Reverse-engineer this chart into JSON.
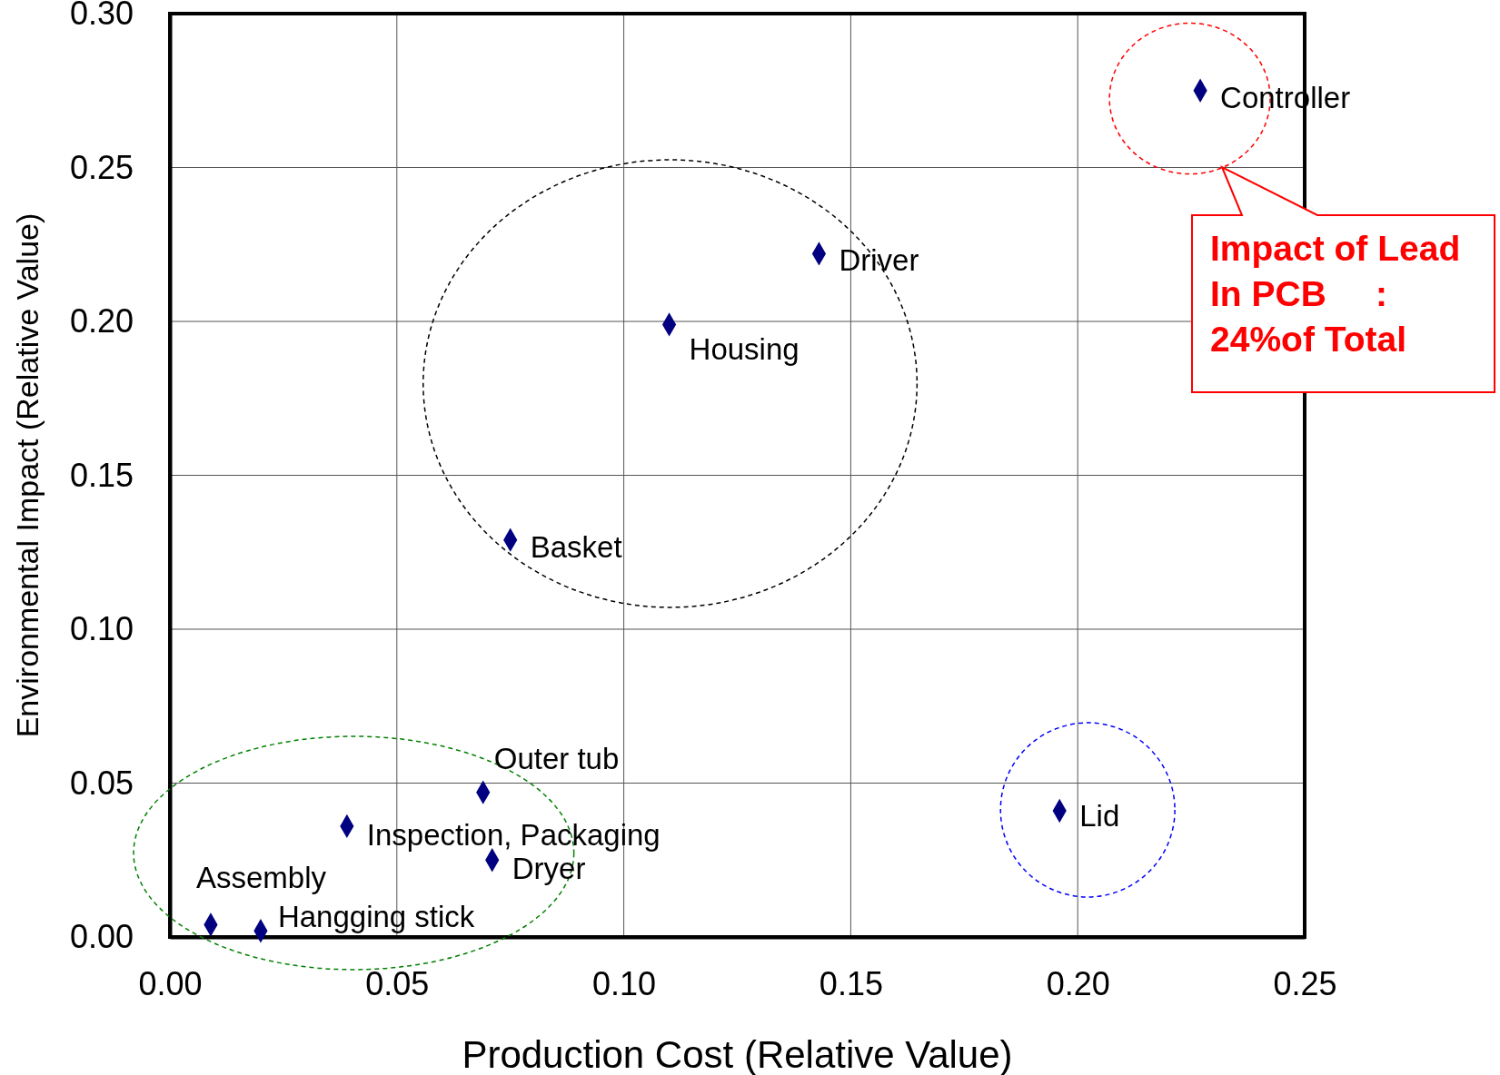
{
  "chart_data": {
    "type": "scatter",
    "xlabel": "Production Cost (Relative Value)",
    "ylabel": "Environmental Impact (Relative Value)",
    "x": [
      0.227,
      0.143,
      0.11,
      0.075,
      0.069,
      0.039,
      0.071,
      0.009,
      0.02,
      0.196
    ],
    "values": [
      0.275,
      0.222,
      0.199,
      0.129,
      0.047,
      0.036,
      0.025,
      0.004,
      0.002,
      0.041
    ],
    "color": "#000080",
    "marker": "diamond",
    "grid": true,
    "xlim": [
      0,
      0.25
    ],
    "xticks": [
      {
        "value": 0,
        "label": "0.00"
      },
      {
        "value": 0.05,
        "label": "0.05"
      },
      {
        "value": 0.1,
        "label": "0.10"
      },
      {
        "value": 0.15,
        "label": "0.15"
      },
      {
        "value": 0.2,
        "label": "0.20"
      },
      {
        "value": 0.25,
        "label": "0.25"
      }
    ],
    "ylim": [
      0,
      0.3
    ],
    "yticks": [
      {
        "value": 0,
        "label": "0.00"
      },
      {
        "value": 0.05,
        "label": "0.05"
      },
      {
        "value": 0.1,
        "label": "0.10"
      },
      {
        "value": 0.15,
        "label": "0.15"
      },
      {
        "value": 0.2,
        "label": "0.20"
      },
      {
        "value": 0.25,
        "label": "0.25"
      },
      {
        "value": 0.3,
        "label": "0.30"
      }
    ],
    "annotations": [
      {
        "text": "Controller",
        "x": 0.227,
        "y": 0.275
      },
      {
        "text": "Driver",
        "x": 0.143,
        "y": 0.222
      },
      {
        "text": "Housing",
        "x": 0.11,
        "y": 0.199
      },
      {
        "text": "Basket",
        "x": 0.075,
        "y": 0.129
      },
      {
        "text": "Outer tub",
        "x": 0.069,
        "y": 0.047
      },
      {
        "text": "Inspection, Packaging",
        "x": 0.039,
        "y": 0.036
      },
      {
        "text": "Dryer",
        "x": 0.071,
        "y": 0.025
      },
      {
        "text": "Assembly",
        "x": 0.009,
        "y": 0.004
      },
      {
        "text": "Hangging stick",
        "x": 0.02,
        "y": 0.002
      },
      {
        "text": "Lid",
        "x": 0.196,
        "y": 0.041
      },
      "Impact of Lead\nIn PCB     :\n24%of Total"
    ]
  }
}
